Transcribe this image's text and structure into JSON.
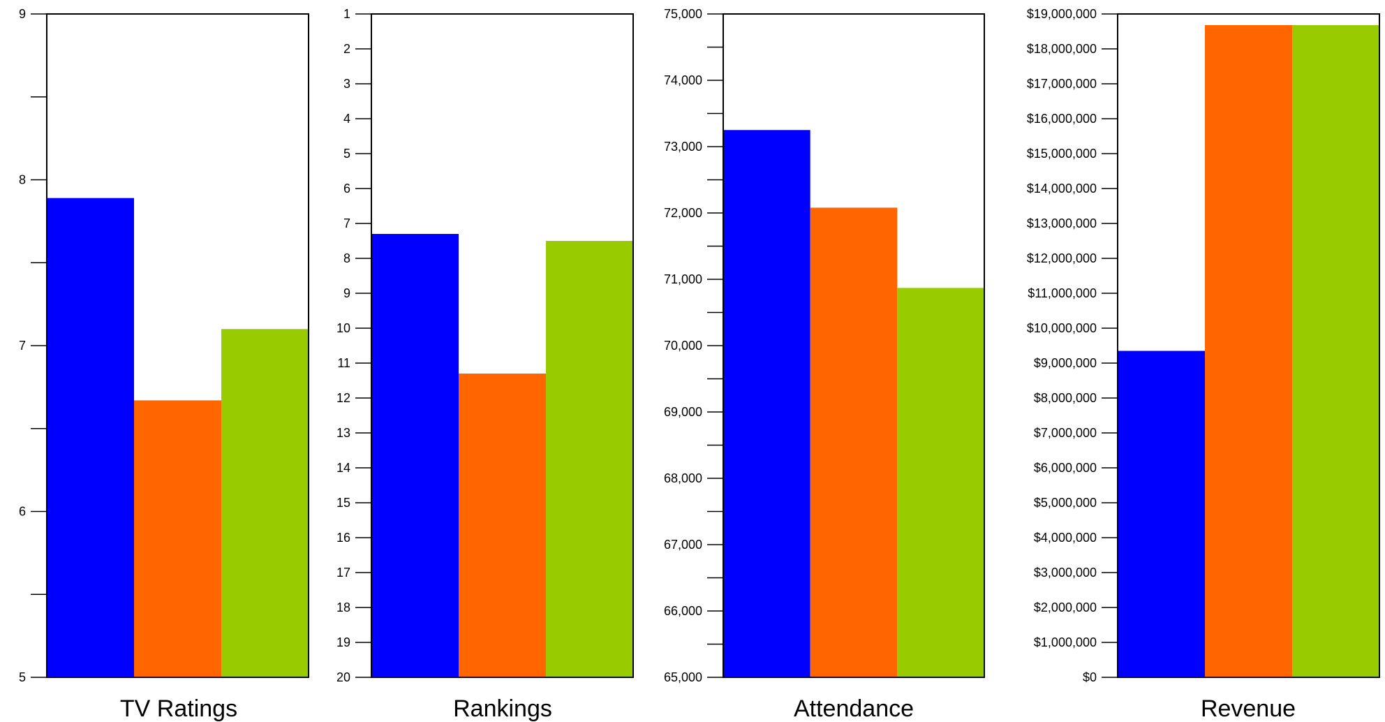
{
  "colors": {
    "series_1": "#0000FF",
    "series_2": "#FF6600",
    "series_3": "#99CC00",
    "axis": "#000000"
  },
  "chart_data": [
    {
      "type": "bar",
      "xlabel": "TV Ratings",
      "categories": [
        "",
        "",
        ""
      ],
      "values": [
        7.89,
        6.67,
        7.1
      ],
      "ylim": [
        5,
        9
      ],
      "y_inverted": false,
      "tick_labels": [
        "9",
        "8",
        "7",
        "6",
        "5"
      ],
      "minor_ticks": true,
      "grid": false
    },
    {
      "type": "bar",
      "xlabel": "Rankings",
      "categories": [
        "",
        "",
        ""
      ],
      "values": [
        7.3,
        11.3,
        7.5
      ],
      "ylim": [
        1,
        20
      ],
      "y_inverted": true,
      "tick_labels": [
        "1",
        "2",
        "3",
        "4",
        "5",
        "6",
        "7",
        "8",
        "9",
        "10",
        "11",
        "12",
        "13",
        "14",
        "15",
        "16",
        "17",
        "18",
        "19",
        "20"
      ],
      "minor_ticks": false,
      "grid": false
    },
    {
      "type": "bar",
      "xlabel": "Attendance",
      "categories": [
        "",
        "",
        ""
      ],
      "values": [
        73250,
        72080,
        70870
      ],
      "ylim": [
        65000,
        75000
      ],
      "y_inverted": false,
      "tick_labels": [
        "75,000",
        "74,000",
        "73,000",
        "72,000",
        "71,000",
        "70,000",
        "69,000",
        "68,000",
        "67,000",
        "66,000",
        "65,000"
      ],
      "minor_ticks": true,
      "grid": false
    },
    {
      "type": "bar",
      "xlabel": "Revenue",
      "categories": [
        "",
        "",
        ""
      ],
      "values": [
        9350000,
        18680000,
        18680000
      ],
      "ylim": [
        0,
        19000000
      ],
      "y_inverted": false,
      "tick_labels": [
        "$19,000,000",
        "$18,000,000",
        "$17,000,000",
        "$16,000,000",
        "$15,000,000",
        "$14,000,000",
        "$13,000,000",
        "$12,000,000",
        "$11,000,000",
        "$10,000,000",
        "$9,000,000",
        "$8,000,000",
        "$7,000,000",
        "$6,000,000",
        "$5,000,000",
        "$4,000,000",
        "$3,000,000",
        "$2,000,000",
        "$1,000,000",
        "$0"
      ],
      "minor_ticks": false,
      "grid": false
    }
  ]
}
